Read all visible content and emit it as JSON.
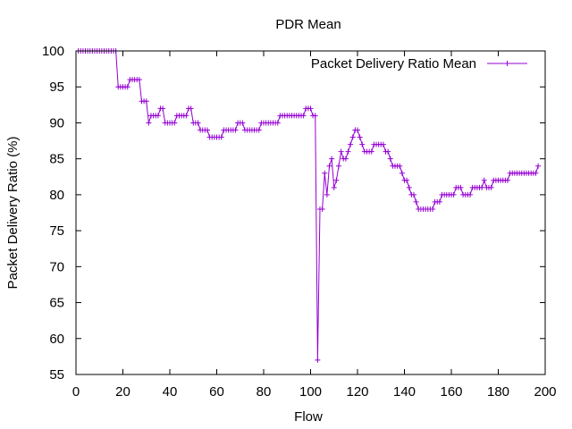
{
  "chart_data": {
    "type": "line",
    "title": "PDR Mean",
    "xlabel": "Flow",
    "ylabel": "Packet Delivery Ratio (%)",
    "xlim": [
      0,
      200
    ],
    "ylim": [
      55,
      100
    ],
    "x_ticks": [
      0,
      20,
      40,
      60,
      80,
      100,
      120,
      140,
      160,
      180,
      200
    ],
    "y_ticks": [
      55,
      60,
      65,
      70,
      75,
      80,
      85,
      90,
      95,
      100
    ],
    "grid": false,
    "legend_position": "top-right",
    "series": [
      {
        "name": "Packet Delivery Ratio Mean",
        "color": "#9400d3",
        "marker": "plus",
        "points": [
          [
            1,
            100
          ],
          [
            2,
            100
          ],
          [
            3,
            100
          ],
          [
            4,
            100
          ],
          [
            5,
            100
          ],
          [
            6,
            100
          ],
          [
            7,
            100
          ],
          [
            8,
            100
          ],
          [
            9,
            100
          ],
          [
            10,
            100
          ],
          [
            11,
            100
          ],
          [
            12,
            100
          ],
          [
            13,
            100
          ],
          [
            14,
            100
          ],
          [
            15,
            100
          ],
          [
            16,
            100
          ],
          [
            17,
            100
          ],
          [
            18,
            95
          ],
          [
            19,
            95
          ],
          [
            20,
            95
          ],
          [
            21,
            95
          ],
          [
            22,
            95
          ],
          [
            23,
            96
          ],
          [
            24,
            96
          ],
          [
            25,
            96
          ],
          [
            26,
            96
          ],
          [
            27,
            96
          ],
          [
            28,
            93
          ],
          [
            29,
            93
          ],
          [
            30,
            93
          ],
          [
            31,
            90
          ],
          [
            32,
            91
          ],
          [
            33,
            91
          ],
          [
            34,
            91
          ],
          [
            35,
            91
          ],
          [
            36,
            92
          ],
          [
            37,
            92
          ],
          [
            38,
            90
          ],
          [
            39,
            90
          ],
          [
            40,
            90
          ],
          [
            41,
            90
          ],
          [
            42,
            90
          ],
          [
            43,
            91
          ],
          [
            44,
            91
          ],
          [
            45,
            91
          ],
          [
            46,
            91
          ],
          [
            47,
            91
          ],
          [
            48,
            92
          ],
          [
            49,
            92
          ],
          [
            50,
            90
          ],
          [
            51,
            90
          ],
          [
            52,
            90
          ],
          [
            53,
            89
          ],
          [
            54,
            89
          ],
          [
            55,
            89
          ],
          [
            56,
            89
          ],
          [
            57,
            88
          ],
          [
            58,
            88
          ],
          [
            59,
            88
          ],
          [
            60,
            88
          ],
          [
            61,
            88
          ],
          [
            62,
            88
          ],
          [
            63,
            89
          ],
          [
            64,
            89
          ],
          [
            65,
            89
          ],
          [
            66,
            89
          ],
          [
            67,
            89
          ],
          [
            68,
            89
          ],
          [
            69,
            90
          ],
          [
            70,
            90
          ],
          [
            71,
            90
          ],
          [
            72,
            89
          ],
          [
            73,
            89
          ],
          [
            74,
            89
          ],
          [
            75,
            89
          ],
          [
            76,
            89
          ],
          [
            77,
            89
          ],
          [
            78,
            89
          ],
          [
            79,
            90
          ],
          [
            80,
            90
          ],
          [
            81,
            90
          ],
          [
            82,
            90
          ],
          [
            83,
            90
          ],
          [
            84,
            90
          ],
          [
            85,
            90
          ],
          [
            86,
            90
          ],
          [
            87,
            91
          ],
          [
            88,
            91
          ],
          [
            89,
            91
          ],
          [
            90,
            91
          ],
          [
            91,
            91
          ],
          [
            92,
            91
          ],
          [
            93,
            91
          ],
          [
            94,
            91
          ],
          [
            95,
            91
          ],
          [
            96,
            91
          ],
          [
            97,
            91
          ],
          [
            98,
            92
          ],
          [
            99,
            92
          ],
          [
            100,
            92
          ],
          [
            101,
            91
          ],
          [
            102,
            91
          ],
          [
            103,
            57
          ],
          [
            104,
            78
          ],
          [
            105,
            78
          ],
          [
            106,
            83
          ],
          [
            107,
            80
          ],
          [
            108,
            84
          ],
          [
            109,
            85
          ],
          [
            110,
            81
          ],
          [
            111,
            82
          ],
          [
            112,
            84
          ],
          [
            113,
            86
          ],
          [
            114,
            85
          ],
          [
            115,
            85
          ],
          [
            116,
            86
          ],
          [
            117,
            87
          ],
          [
            118,
            88
          ],
          [
            119,
            89
          ],
          [
            120,
            89
          ],
          [
            121,
            88
          ],
          [
            122,
            87
          ],
          [
            123,
            86
          ],
          [
            124,
            86
          ],
          [
            125,
            86
          ],
          [
            126,
            86
          ],
          [
            127,
            87
          ],
          [
            128,
            87
          ],
          [
            129,
            87
          ],
          [
            130,
            87
          ],
          [
            131,
            87
          ],
          [
            132,
            86
          ],
          [
            133,
            86
          ],
          [
            134,
            85
          ],
          [
            135,
            84
          ],
          [
            136,
            84
          ],
          [
            137,
            84
          ],
          [
            138,
            84
          ],
          [
            139,
            83
          ],
          [
            140,
            82
          ],
          [
            141,
            82
          ],
          [
            142,
            81
          ],
          [
            143,
            80
          ],
          [
            144,
            80
          ],
          [
            145,
            79
          ],
          [
            146,
            78
          ],
          [
            147,
            78
          ],
          [
            148,
            78
          ],
          [
            149,
            78
          ],
          [
            150,
            78
          ],
          [
            151,
            78
          ],
          [
            152,
            78
          ],
          [
            153,
            79
          ],
          [
            154,
            79
          ],
          [
            155,
            79
          ],
          [
            156,
            80
          ],
          [
            157,
            80
          ],
          [
            158,
            80
          ],
          [
            159,
            80
          ],
          [
            160,
            80
          ],
          [
            161,
            80
          ],
          [
            162,
            81
          ],
          [
            163,
            81
          ],
          [
            164,
            81
          ],
          [
            165,
            80
          ],
          [
            166,
            80
          ],
          [
            167,
            80
          ],
          [
            168,
            80
          ],
          [
            169,
            81
          ],
          [
            170,
            81
          ],
          [
            171,
            81
          ],
          [
            172,
            81
          ],
          [
            173,
            81
          ],
          [
            174,
            82
          ],
          [
            175,
            81
          ],
          [
            176,
            81
          ],
          [
            177,
            81
          ],
          [
            178,
            82
          ],
          [
            179,
            82
          ],
          [
            180,
            82
          ],
          [
            181,
            82
          ],
          [
            182,
            82
          ],
          [
            183,
            82
          ],
          [
            184,
            82
          ],
          [
            185,
            83
          ],
          [
            186,
            83
          ],
          [
            187,
            83
          ],
          [
            188,
            83
          ],
          [
            189,
            83
          ],
          [
            190,
            83
          ],
          [
            191,
            83
          ],
          [
            192,
            83
          ],
          [
            193,
            83
          ],
          [
            194,
            83
          ],
          [
            195,
            83
          ],
          [
            196,
            83
          ],
          [
            197,
            84
          ]
        ]
      }
    ]
  }
}
